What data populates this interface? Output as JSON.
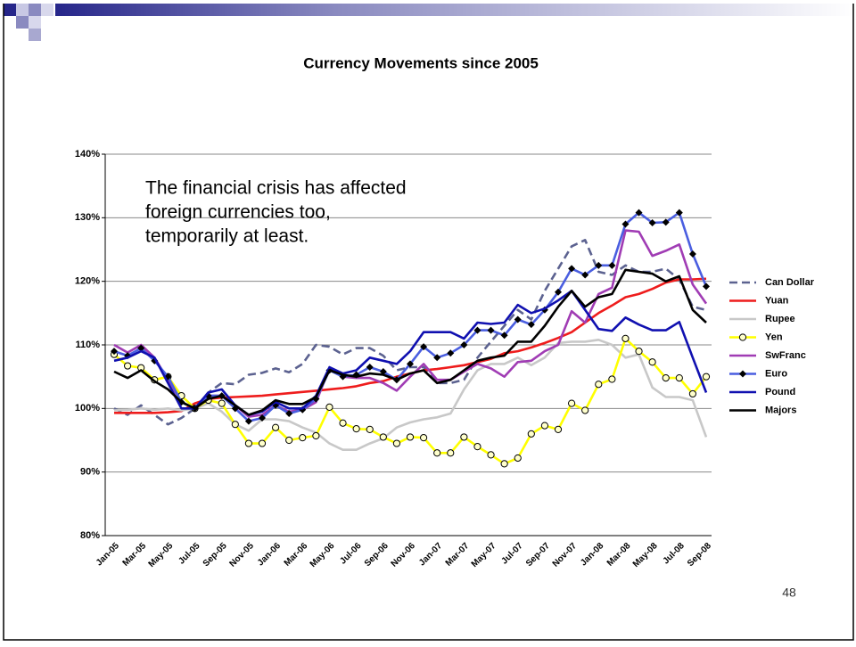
{
  "chart_data": {
    "type": "line",
    "title": "Currency Movements since 2005",
    "annotation": [
      "The financial crisis has affected",
      "foreign currencies too,",
      "temporarily at least."
    ],
    "categories": [
      "Jan-05",
      null,
      "Mar-05",
      null,
      "May-05",
      null,
      "Jul-05",
      null,
      "Sep-05",
      null,
      "Nov-05",
      null,
      "Jan-06",
      null,
      "Mar-06",
      null,
      "May-06",
      null,
      "Jul-06",
      null,
      "Sep-06",
      null,
      "Nov-06",
      null,
      "Jan-07",
      null,
      "Mar-07",
      null,
      "May-07",
      null,
      "Jul-07",
      null,
      "Sep-07",
      null,
      "Nov-07",
      null,
      "Jan-08",
      null,
      "Mar-08",
      null,
      "May-08",
      null,
      "Jul-08",
      null,
      "Sep-08"
    ],
    "ylim": [
      80,
      140
    ],
    "yticks": [
      {
        "value": 80,
        "label": "80%"
      },
      {
        "value": 90,
        "label": "90%"
      },
      {
        "value": 100,
        "label": "100%"
      },
      {
        "value": 110,
        "label": "110%"
      },
      {
        "value": 120,
        "label": "120%"
      },
      {
        "value": 130,
        "label": "130%"
      },
      {
        "value": 140,
        "label": "140%"
      }
    ],
    "grid": true,
    "legend": "right",
    "series": [
      {
        "name": "Can Dollar",
        "color": "#5c6290",
        "dash": true,
        "values": [
          100,
          99,
          100.5,
          99,
          97.5,
          98.5,
          100,
          102.5,
          104,
          103.8,
          105.3,
          105.6,
          106.3,
          105.7,
          107,
          110,
          109.7,
          108.5,
          109.5,
          109.5,
          108.3,
          106,
          106.5,
          106.5,
          104,
          104,
          104.5,
          108,
          110.5,
          113,
          115.5,
          114,
          118.5,
          122,
          125.5,
          126.5,
          121.5,
          121,
          122.5,
          121.5,
          121.5,
          122,
          120.3,
          116,
          115.5
        ]
      },
      {
        "name": "Yuan",
        "color": "#ee1c1c",
        "values": [
          99.3,
          99.3,
          99.3,
          99.3,
          99.4,
          99.6,
          100.8,
          101.5,
          101.7,
          101.8,
          101.9,
          102,
          102.2,
          102.4,
          102.6,
          102.8,
          103,
          103.2,
          103.5,
          104,
          104.3,
          105,
          105.5,
          106,
          106.2,
          106.5,
          106.8,
          107.3,
          107.8,
          108.7,
          109,
          109.6,
          110.3,
          111.1,
          112,
          113.5,
          115,
          116.2,
          117.5,
          118,
          118.8,
          119.8,
          120.3,
          120.3,
          120.4
        ]
      },
      {
        "name": "Rupee",
        "color": "#c8c8c8",
        "values": [
          99.7,
          99.8,
          100,
          99.8,
          100,
          99.7,
          100,
          100.8,
          99.5,
          97.5,
          96.5,
          98.3,
          98.3,
          98,
          97,
          96.2,
          94.5,
          93.5,
          93.5,
          94.5,
          95.3,
          97,
          97.8,
          98.3,
          98.6,
          99.2,
          103,
          106,
          107,
          107,
          108,
          106.8,
          108,
          110.3,
          110.5,
          110.5,
          110.8,
          110,
          108,
          108.5,
          103.3,
          101.8,
          101.8,
          101.3,
          95.5
        ]
      },
      {
        "name": "Yen",
        "color": "#ffff00",
        "marker": "circle",
        "values": [
          108.5,
          106.7,
          106.4,
          104.5,
          105,
          102,
          100,
          101.3,
          100.8,
          97.5,
          94.5,
          94.5,
          97,
          95,
          95.4,
          95.7,
          100.2,
          97.7,
          96.8,
          96.7,
          95.5,
          94.5,
          95.5,
          95.4,
          93,
          93,
          95.5,
          94,
          92.7,
          91.3,
          92.2,
          96,
          97.3,
          96.7,
          100.8,
          99.7,
          103.8,
          104.6,
          111,
          109,
          107.3,
          104.8,
          104.8,
          102.3,
          105
        ]
      },
      {
        "name": "SwFranc",
        "color": "#a03cb4",
        "values": [
          110,
          108.8,
          110,
          108,
          104.5,
          101,
          100,
          102,
          102,
          100.5,
          98.7,
          99,
          100.5,
          99.5,
          99.8,
          101,
          106.3,
          105,
          104.8,
          104.8,
          104,
          102.8,
          105,
          107,
          104.5,
          104.5,
          105.8,
          107,
          106.3,
          105,
          107.3,
          107.5,
          109,
          110,
          115.3,
          113.5,
          118,
          119,
          128,
          127.8,
          124,
          124.8,
          125.8,
          119.5,
          116.5
        ]
      },
      {
        "name": "Euro",
        "color": "#4a5ee0",
        "marker": "diamond",
        "values": [
          109,
          108.3,
          109.5,
          107.5,
          105,
          101,
          100,
          102,
          102,
          100,
          98,
          98.5,
          100.5,
          99.2,
          99.8,
          101.5,
          106,
          105,
          105.3,
          106.5,
          105.8,
          104.5,
          107,
          109.7,
          108,
          108.7,
          110,
          112.3,
          112.3,
          111.5,
          114,
          113.2,
          115.5,
          118.3,
          122,
          121,
          122.5,
          122.5,
          129,
          130.8,
          129.2,
          129.3,
          130.8,
          124.3,
          119.2
        ]
      },
      {
        "name": "Pound",
        "color": "#1010b0",
        "values": [
          107.5,
          108,
          109,
          108,
          104,
          100,
          100,
          102.5,
          103,
          100.5,
          99,
          99.5,
          101,
          100,
          100,
          102,
          106.5,
          105.5,
          106,
          108,
          107.5,
          107,
          109,
          112,
          112,
          112,
          111,
          113.5,
          113.3,
          113.5,
          116.3,
          115,
          115.7,
          117,
          118.5,
          115.5,
          112.5,
          112.2,
          114.3,
          113.2,
          112.3,
          112.3,
          113.6,
          108,
          102.5
        ]
      },
      {
        "name": "Majors",
        "color": "#000000",
        "values": [
          105.8,
          104.8,
          106,
          104.3,
          103,
          101,
          100,
          101.5,
          102,
          100.5,
          99,
          99.7,
          101.3,
          100.7,
          100.7,
          101.8,
          106,
          105.3,
          105,
          105.5,
          105.3,
          104.5,
          105.5,
          106,
          104,
          104.5,
          106,
          107.5,
          108,
          108.3,
          110.5,
          110.5,
          113,
          116,
          118.5,
          116,
          117.5,
          118,
          121.8,
          121.5,
          121.2,
          120,
          120.8,
          115.5,
          113.5
        ]
      }
    ]
  },
  "page_number": "48"
}
